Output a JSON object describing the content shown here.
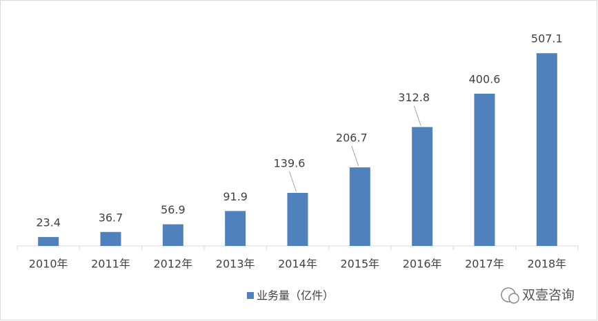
{
  "chart_data": {
    "type": "bar",
    "categories": [
      "2010年",
      "2011年",
      "2012年",
      "2013年",
      "2014年",
      "2015年",
      "2016年",
      "2017年",
      "2018年"
    ],
    "series": [
      {
        "name": "业务量（亿件）",
        "color": "#4f81bd",
        "values": [
          23.4,
          36.7,
          56.9,
          91.9,
          139.6,
          206.7,
          312.8,
          400.6,
          507.1
        ]
      }
    ],
    "ylim": [
      0,
      600
    ],
    "watermark": "双壹咨询"
  }
}
